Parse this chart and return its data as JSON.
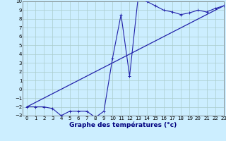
{
  "xlabel": "Graphe des températures (°c)",
  "bg_color": "#cceeff",
  "grid_color": "#aacccc",
  "line_color": "#2222aa",
  "hours": [
    0,
    1,
    2,
    3,
    4,
    5,
    6,
    7,
    8,
    9,
    10,
    11,
    12,
    13,
    14,
    15,
    16,
    17,
    18,
    19,
    20,
    21,
    22,
    23
  ],
  "temps": [
    -2,
    -2,
    -2,
    -2.2,
    -3,
    -2.5,
    -2.5,
    -2.5,
    -3.2,
    -2.5,
    3.5,
    8.5,
    1.5,
    10.5,
    10,
    9.5,
    9,
    8.8,
    8.5,
    8.7,
    9,
    8.8,
    9.2,
    9.5
  ],
  "trend_x": [
    0,
    23
  ],
  "trend_y": [
    -2.0,
    9.5
  ],
  "ylim": [
    -3,
    10
  ],
  "xlim": [
    -0.5,
    23
  ],
  "yticks": [
    -3,
    -2,
    -1,
    0,
    1,
    2,
    3,
    4,
    5,
    6,
    7,
    8,
    9,
    10
  ],
  "xticks": [
    0,
    1,
    2,
    3,
    4,
    5,
    6,
    7,
    8,
    9,
    10,
    11,
    12,
    13,
    14,
    15,
    16,
    17,
    18,
    19,
    20,
    21,
    22,
    23
  ],
  "tick_fontsize": 5.0,
  "xlabel_fontsize": 6.5
}
